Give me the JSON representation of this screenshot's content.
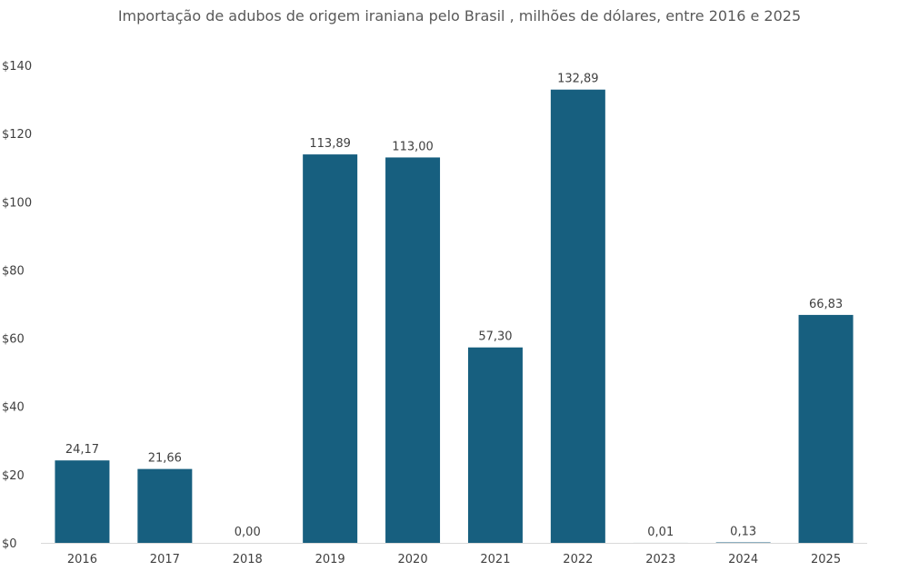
{
  "chart_data": {
    "type": "bar",
    "title": "Importação de adubos de origem iraniana pelo Brasil , milhões de dólares, entre 2016 e 2025",
    "xlabel": "",
    "ylabel": "",
    "categories": [
      "2016",
      "2017",
      "2018",
      "2019",
      "2020",
      "2021",
      "2022",
      "2023",
      "2024",
      "2025"
    ],
    "values": [
      24.17,
      21.66,
      0.0,
      113.89,
      113.0,
      57.3,
      132.89,
      0.01,
      0.13,
      66.83
    ],
    "data_labels": [
      "24,17",
      "21,66",
      "0,00",
      "113,89",
      "113,00",
      "57,30",
      "132,89",
      "0,01",
      "0,13",
      "66,83"
    ],
    "ylim": [
      0,
      140
    ],
    "y_ticks": [
      0,
      20,
      40,
      60,
      80,
      100,
      120,
      140
    ],
    "y_tick_labels": [
      "$0",
      "$20",
      "$40",
      "$60",
      "$80",
      "$100",
      "$120",
      "$140"
    ],
    "grid": false,
    "legend": "none",
    "bar_color": "#175F7F",
    "axis_color": "#D9D9D9"
  }
}
